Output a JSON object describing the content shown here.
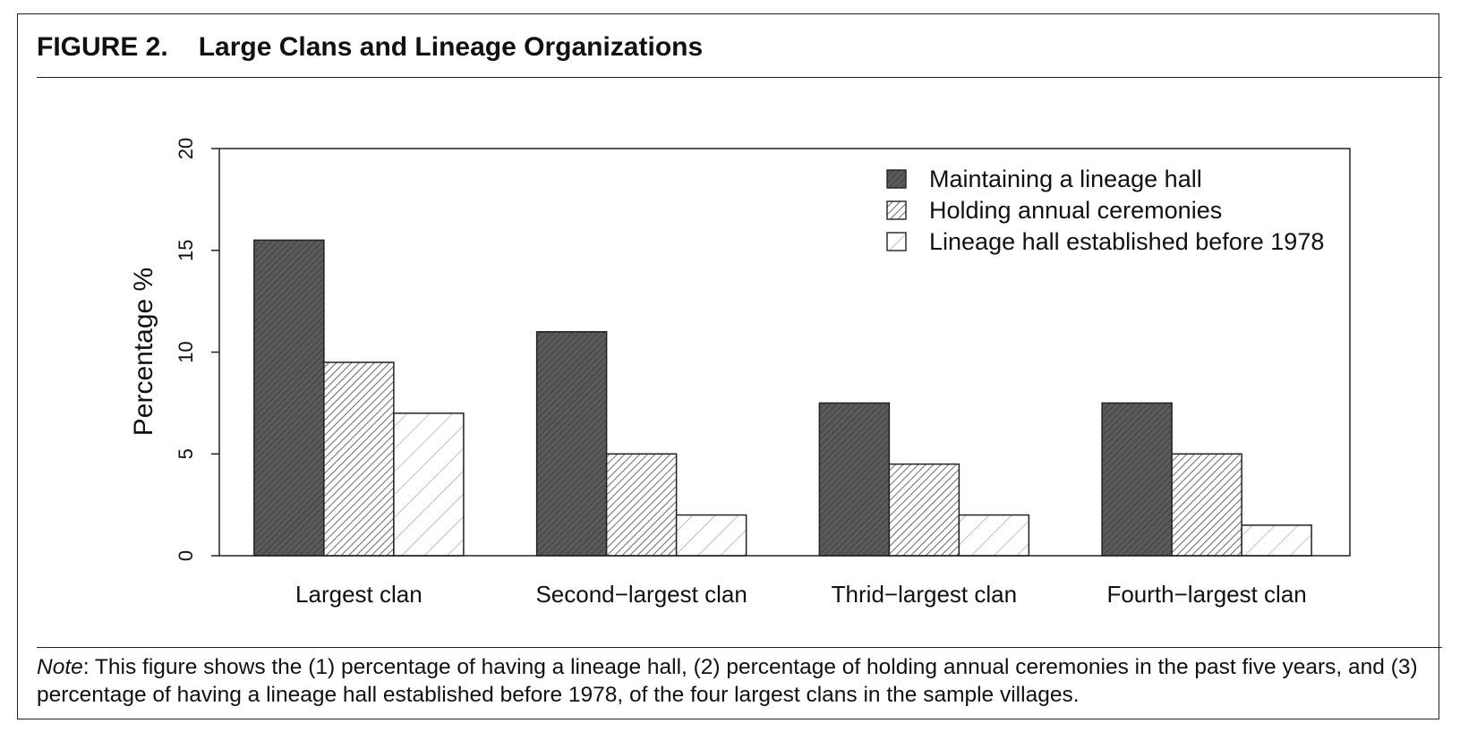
{
  "figure": {
    "number": "FIGURE 2.",
    "title": "Large Clans and Lineage Organizations"
  },
  "note": {
    "lead": "Note",
    "text": ": This figure shows the (1) percentage of having a lineage hall, (2) percentage of holding annual ceremonies in the past five years, and (3) percentage of having a lineage hall established before 1978, of the four largest clans in the sample villages."
  },
  "chart_data": {
    "type": "bar",
    "title": "Large Clans and Lineage Organizations",
    "xlabel": "",
    "ylabel": "Percentage %",
    "ylim": [
      0,
      20
    ],
    "yticks": [
      0,
      5,
      10,
      15,
      20
    ],
    "grid": false,
    "legend_position": "top-right",
    "categories": [
      "Largest clan",
      "Second−largest clan",
      "Thrid−largest clan",
      "Fourth−largest clan"
    ],
    "series": [
      {
        "name": "Maintaining a lineage hall",
        "fill": "dense-dark-hatch",
        "color": "#5a5a5a",
        "values": [
          15.5,
          11,
          7.5,
          7.5
        ]
      },
      {
        "name": "Holding annual ceremonies",
        "fill": "medium-hatch",
        "color": "#444444",
        "values": [
          9.5,
          5,
          4.5,
          5
        ]
      },
      {
        "name": "Lineage hall established before 1978",
        "fill": "sparse-hatch",
        "color": "#999999",
        "values": [
          7,
          2,
          2,
          1.5
        ]
      }
    ]
  }
}
